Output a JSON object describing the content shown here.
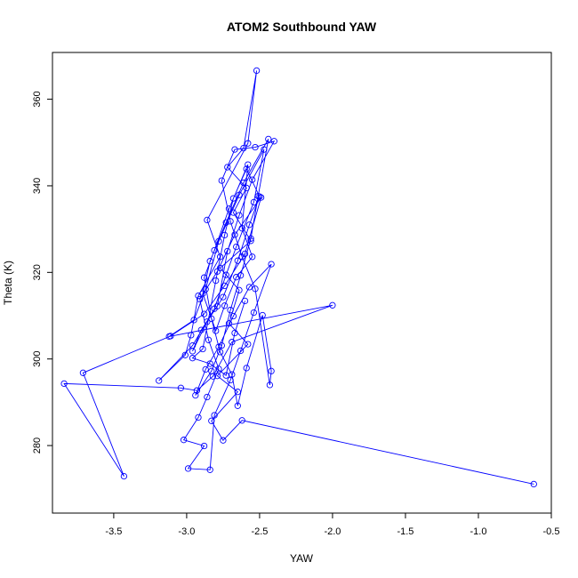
{
  "chart_data": {
    "type": "line",
    "title": "ATOM2 Southbound YAW",
    "xlabel": "YAW",
    "ylabel": "Theta (K)",
    "xlim": [
      -3.92,
      -0.5
    ],
    "ylim": [
      264.4,
      370.8
    ],
    "x_ticks": [
      -3.5,
      -3.0,
      -2.5,
      -2.0,
      -1.5,
      -1.0,
      -0.5
    ],
    "x_tick_labels": [
      "-3.5",
      "-3.0",
      "-2.5",
      "-2.0",
      "-1.5",
      "-1.0",
      "-0.5"
    ],
    "y_ticks": [
      280,
      300,
      320,
      340,
      360
    ],
    "y_tick_labels": [
      "280",
      "300",
      "320",
      "340",
      "360"
    ],
    "grid": false,
    "marker": "open-circle",
    "color": "#0000ff",
    "series": [
      {
        "points": [
          [
            -0.62,
            271.1
          ],
          [
            -2.62,
            285.8
          ],
          [
            -2.75,
            281.2
          ],
          [
            -2.83,
            285.7
          ],
          [
            -2.65,
            292.4
          ],
          [
            -2.79,
            296.1
          ],
          [
            -2.58,
            303.4
          ],
          [
            -2.71,
            308.2
          ],
          [
            -2.64,
            315.9
          ],
          [
            -2.77,
            321.0
          ],
          [
            -2.56,
            327.3
          ],
          [
            -2.68,
            333.8
          ],
          [
            -2.59,
            339.5
          ],
          [
            -2.72,
            344.3
          ],
          [
            -2.61,
            348.7
          ],
          [
            -2.52,
            366.6
          ],
          [
            -2.58,
            349.8
          ],
          [
            -2.86,
            332.1
          ],
          [
            -2.77,
            323.6
          ],
          [
            -2.92,
            314.6
          ],
          [
            -2.97,
            305.5
          ],
          [
            -3.01,
            300.9
          ],
          [
            -3.19,
            295.0
          ],
          [
            -2.96,
            303.1
          ],
          [
            -2.81,
            311.6
          ],
          [
            -2.73,
            319.4
          ],
          [
            -2.66,
            325.9
          ],
          [
            -2.54,
            336.2
          ],
          [
            -2.47,
            348.4
          ],
          [
            -2.64,
            337.9
          ],
          [
            -2.78,
            327.2
          ],
          [
            -2.87,
            316.1
          ],
          [
            -2.95,
            309.0
          ],
          [
            -3.12,
            305.2
          ],
          [
            -2.0,
            312.4
          ],
          [
            -2.69,
            303.9
          ],
          [
            -2.82,
            296.0
          ],
          [
            -2.93,
            292.7
          ],
          [
            -3.04,
            293.3
          ],
          [
            -3.84,
            294.3
          ],
          [
            -3.43,
            272.9
          ],
          [
            -3.71,
            296.8
          ],
          [
            -3.11,
            305.3
          ],
          [
            -2.88,
            310.4
          ],
          [
            -2.74,
            316.9
          ],
          [
            -2.6,
            324.3
          ],
          [
            -2.49,
            337.3
          ],
          [
            -2.67,
            328.7
          ],
          [
            -2.79,
            320.2
          ],
          [
            -2.91,
            313.8
          ],
          [
            -2.85,
            304.4
          ],
          [
            -2.78,
            297.7
          ],
          [
            -2.86,
            291.2
          ],
          [
            -2.92,
            286.5
          ],
          [
            -3.02,
            281.3
          ],
          [
            -2.88,
            279.9
          ],
          [
            -2.99,
            274.7
          ],
          [
            -2.84,
            274.4
          ],
          [
            -2.81,
            287.0
          ],
          [
            -2.7,
            295.1
          ],
          [
            -2.63,
            301.9
          ],
          [
            -2.54,
            310.7
          ],
          [
            -2.42,
            321.9
          ],
          [
            -2.57,
            316.6
          ],
          [
            -2.68,
            309.9
          ],
          [
            -2.78,
            302.8
          ],
          [
            -2.87,
            297.6
          ],
          [
            -2.94,
            291.6
          ],
          [
            -2.83,
            297.2
          ],
          [
            -2.76,
            303.1
          ],
          [
            -2.7,
            311.3
          ],
          [
            -2.63,
            319.3
          ],
          [
            -2.56,
            327.8
          ],
          [
            -2.51,
            337.6
          ],
          [
            -2.44,
            350.8
          ],
          [
            -2.61,
            340.7
          ],
          [
            -2.73,
            331.5
          ],
          [
            -2.84,
            322.6
          ],
          [
            -2.89,
            315.1
          ],
          [
            -2.8,
            306.5
          ],
          [
            -2.74,
            312.3
          ],
          [
            -2.66,
            318.9
          ],
          [
            -2.55,
            323.6
          ],
          [
            -2.62,
            330.2
          ],
          [
            -2.58,
            344.9
          ],
          [
            -2.71,
            334.7
          ],
          [
            -2.81,
            325.1
          ],
          [
            -2.88,
            318.8
          ],
          [
            -2.83,
            309.3
          ],
          [
            -2.77,
            301.6
          ],
          [
            -2.69,
            296.4
          ],
          [
            -2.65,
            289.2
          ],
          [
            -2.59,
            297.9
          ],
          [
            -2.48,
            310.1
          ],
          [
            -2.42,
            297.2
          ],
          [
            -2.43,
            294.0
          ],
          [
            -2.53,
            316.2
          ],
          [
            -2.62,
            323.6
          ],
          [
            -2.7,
            331.8
          ],
          [
            -2.76,
            341.2
          ],
          [
            -2.67,
            348.4
          ],
          [
            -2.53,
            348.9
          ],
          [
            -2.4,
            350.3
          ],
          [
            -2.55,
            341.4
          ],
          [
            -2.64,
            333.2
          ],
          [
            -2.72,
            324.9
          ],
          [
            -2.79,
            312.2
          ],
          [
            -2.9,
            306.7
          ],
          [
            -2.96,
            301.8
          ],
          [
            -2.86,
            308.6
          ],
          [
            -2.75,
            314.3
          ],
          [
            -2.65,
            322.7
          ],
          [
            -2.57,
            331.0
          ],
          [
            -2.5,
            337.5
          ],
          [
            -2.59,
            343.9
          ],
          [
            -2.68,
            337.1
          ],
          [
            -2.74,
            328.6
          ],
          [
            -2.8,
            318.1
          ],
          [
            -2.89,
            302.3
          ],
          [
            -2.96,
            300.2
          ],
          [
            -2.84,
            298.9
          ],
          [
            -2.73,
            296.2
          ],
          [
            -2.67,
            306.0
          ],
          [
            -2.6,
            313.4
          ]
        ]
      }
    ]
  }
}
